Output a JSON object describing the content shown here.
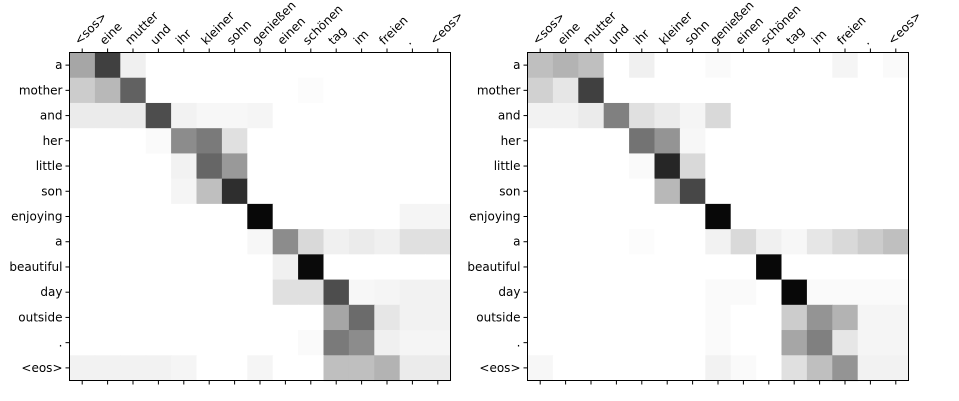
{
  "chart_data": [
    {
      "type": "heatmap",
      "colormap": "Greys",
      "x_tick_labels": [
        "<sos>",
        "eine",
        "mutter",
        "und",
        "ihr",
        "kleiner",
        "sohn",
        "genießen",
        "einen",
        "schönen",
        "tag",
        "im",
        "freien",
        ".",
        "<eos>"
      ],
      "y_tick_labels": [
        "a",
        "mother",
        "and",
        "her",
        "little",
        "son",
        "enjoying",
        "a",
        "beautiful",
        "day",
        "outside",
        ".",
        "<eos>"
      ],
      "values": [
        [
          0.35,
          0.75,
          0.06,
          0.0,
          0.0,
          0.0,
          0.0,
          0.0,
          0.0,
          0.0,
          0.0,
          0.0,
          0.0,
          0.0,
          0.0
        ],
        [
          0.2,
          0.28,
          0.62,
          0.0,
          0.0,
          0.0,
          0.0,
          0.0,
          0.0,
          0.01,
          0.0,
          0.0,
          0.0,
          0.0,
          0.0
        ],
        [
          0.08,
          0.08,
          0.08,
          0.7,
          0.05,
          0.03,
          0.03,
          0.04,
          0.0,
          0.0,
          0.0,
          0.0,
          0.0,
          0.0,
          0.0
        ],
        [
          0.0,
          0.0,
          0.0,
          0.02,
          0.45,
          0.52,
          0.12,
          0.0,
          0.0,
          0.0,
          0.0,
          0.0,
          0.0,
          0.0,
          0.0
        ],
        [
          0.0,
          0.0,
          0.0,
          0.0,
          0.05,
          0.6,
          0.4,
          0.0,
          0.0,
          0.0,
          0.0,
          0.0,
          0.0,
          0.0,
          0.0
        ],
        [
          0.0,
          0.0,
          0.0,
          0.0,
          0.04,
          0.25,
          0.82,
          0.0,
          0.0,
          0.0,
          0.0,
          0.0,
          0.0,
          0.0,
          0.0
        ],
        [
          0.0,
          0.0,
          0.0,
          0.0,
          0.0,
          0.0,
          0.0,
          0.97,
          0.0,
          0.0,
          0.0,
          0.0,
          0.0,
          0.04,
          0.04
        ],
        [
          0.0,
          0.0,
          0.0,
          0.0,
          0.0,
          0.0,
          0.0,
          0.03,
          0.45,
          0.15,
          0.06,
          0.08,
          0.06,
          0.12,
          0.12
        ],
        [
          0.0,
          0.0,
          0.0,
          0.0,
          0.0,
          0.0,
          0.0,
          0.0,
          0.06,
          0.96,
          0.0,
          0.0,
          0.0,
          0.0,
          0.0
        ],
        [
          0.0,
          0.0,
          0.0,
          0.0,
          0.0,
          0.0,
          0.0,
          0.0,
          0.12,
          0.12,
          0.7,
          0.03,
          0.04,
          0.05,
          0.05
        ],
        [
          0.0,
          0.0,
          0.0,
          0.0,
          0.0,
          0.0,
          0.0,
          0.0,
          0.0,
          0.0,
          0.35,
          0.58,
          0.1,
          0.05,
          0.05
        ],
        [
          0.0,
          0.0,
          0.0,
          0.0,
          0.0,
          0.0,
          0.0,
          0.0,
          0.0,
          0.02,
          0.52,
          0.45,
          0.06,
          0.04,
          0.04
        ],
        [
          0.05,
          0.05,
          0.05,
          0.05,
          0.04,
          0.0,
          0.0,
          0.04,
          0.0,
          0.0,
          0.25,
          0.25,
          0.3,
          0.08,
          0.08
        ]
      ]
    },
    {
      "type": "heatmap",
      "colormap": "Greys",
      "x_tick_labels": [
        "<sos>",
        "eine",
        "mutter",
        "und",
        "ihr",
        "kleiner",
        "sohn",
        "genießen",
        "einen",
        "schönen",
        "tag",
        "im",
        "freien",
        ".",
        "<eos>"
      ],
      "y_tick_labels": [
        "a",
        "mother",
        "and",
        "her",
        "little",
        "son",
        "enjoying",
        "a",
        "beautiful",
        "day",
        "outside",
        ".",
        "<eos>"
      ],
      "values": [
        [
          0.25,
          0.3,
          0.25,
          0.0,
          0.06,
          0.0,
          0.0,
          0.02,
          0.0,
          0.0,
          0.0,
          0.0,
          0.04,
          0.0,
          0.02
        ],
        [
          0.18,
          0.1,
          0.75,
          0.0,
          0.0,
          0.0,
          0.0,
          0.0,
          0.0,
          0.0,
          0.0,
          0.0,
          0.0,
          0.0,
          0.0
        ],
        [
          0.05,
          0.05,
          0.08,
          0.5,
          0.12,
          0.08,
          0.04,
          0.15,
          0.0,
          0.0,
          0.0,
          0.0,
          0.0,
          0.0,
          0.0
        ],
        [
          0.0,
          0.0,
          0.0,
          0.0,
          0.55,
          0.42,
          0.03,
          0.0,
          0.0,
          0.0,
          0.0,
          0.0,
          0.0,
          0.0,
          0.0
        ],
        [
          0.0,
          0.0,
          0.0,
          0.0,
          0.02,
          0.85,
          0.15,
          0.0,
          0.0,
          0.0,
          0.0,
          0.0,
          0.0,
          0.0,
          0.0
        ],
        [
          0.0,
          0.0,
          0.0,
          0.0,
          0.0,
          0.28,
          0.72,
          0.0,
          0.0,
          0.0,
          0.0,
          0.0,
          0.0,
          0.0,
          0.0
        ],
        [
          0.0,
          0.0,
          0.0,
          0.0,
          0.0,
          0.0,
          0.0,
          0.97,
          0.0,
          0.0,
          0.0,
          0.0,
          0.0,
          0.0,
          0.0
        ],
        [
          0.0,
          0.0,
          0.0,
          0.0,
          0.01,
          0.0,
          0.0,
          0.05,
          0.15,
          0.06,
          0.03,
          0.1,
          0.15,
          0.2,
          0.25
        ],
        [
          0.0,
          0.0,
          0.0,
          0.0,
          0.0,
          0.0,
          0.0,
          0.0,
          0.0,
          0.97,
          0.0,
          0.0,
          0.0,
          0.0,
          0.0
        ],
        [
          0.0,
          0.0,
          0.0,
          0.0,
          0.0,
          0.0,
          0.0,
          0.02,
          0.02,
          0.0,
          0.97,
          0.02,
          0.02,
          0.02,
          0.02
        ],
        [
          0.0,
          0.0,
          0.0,
          0.0,
          0.0,
          0.0,
          0.0,
          0.02,
          0.0,
          0.0,
          0.2,
          0.42,
          0.3,
          0.04,
          0.04
        ],
        [
          0.0,
          0.0,
          0.0,
          0.0,
          0.0,
          0.0,
          0.0,
          0.02,
          0.0,
          0.0,
          0.35,
          0.5,
          0.1,
          0.04,
          0.04
        ],
        [
          0.03,
          0.0,
          0.0,
          0.0,
          0.0,
          0.0,
          0.0,
          0.05,
          0.02,
          0.0,
          0.12,
          0.25,
          0.42,
          0.05,
          0.05
        ]
      ]
    }
  ]
}
